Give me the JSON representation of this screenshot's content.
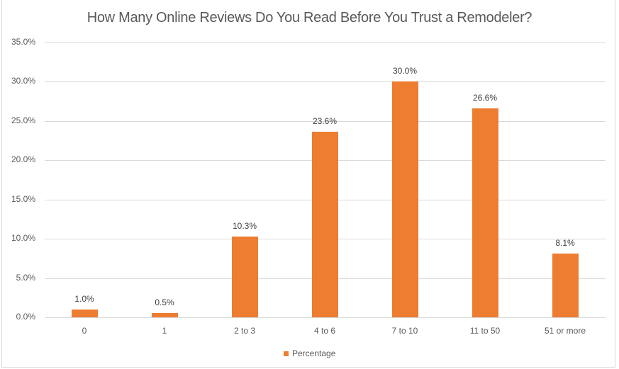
{
  "chart_data": {
    "type": "bar",
    "title": "How Many Online Reviews Do You Read Before You Trust a Remodeler?",
    "xlabel": "",
    "ylabel": "",
    "categories": [
      "0",
      "1",
      "2 to 3",
      "4 to 6",
      "7 to 10",
      "11 to 50",
      "51 or more"
    ],
    "series": [
      {
        "name": "Percentage",
        "values": [
          1.0,
          0.5,
          10.3,
          23.6,
          30.0,
          26.6,
          8.1
        ],
        "color": "#ed7d31"
      }
    ],
    "data_labels": [
      "1.0%",
      "0.5%",
      "10.3%",
      "23.6%",
      "30.0%",
      "26.6%",
      "8.1%"
    ],
    "y_ticks": [
      "0.0%",
      "5.0%",
      "10.0%",
      "15.0%",
      "20.0%",
      "25.0%",
      "30.0%",
      "35.0%"
    ],
    "ylim": [
      0,
      35
    ],
    "grid": true,
    "legend_position": "bottom"
  },
  "legend": {
    "label": "Percentage"
  }
}
